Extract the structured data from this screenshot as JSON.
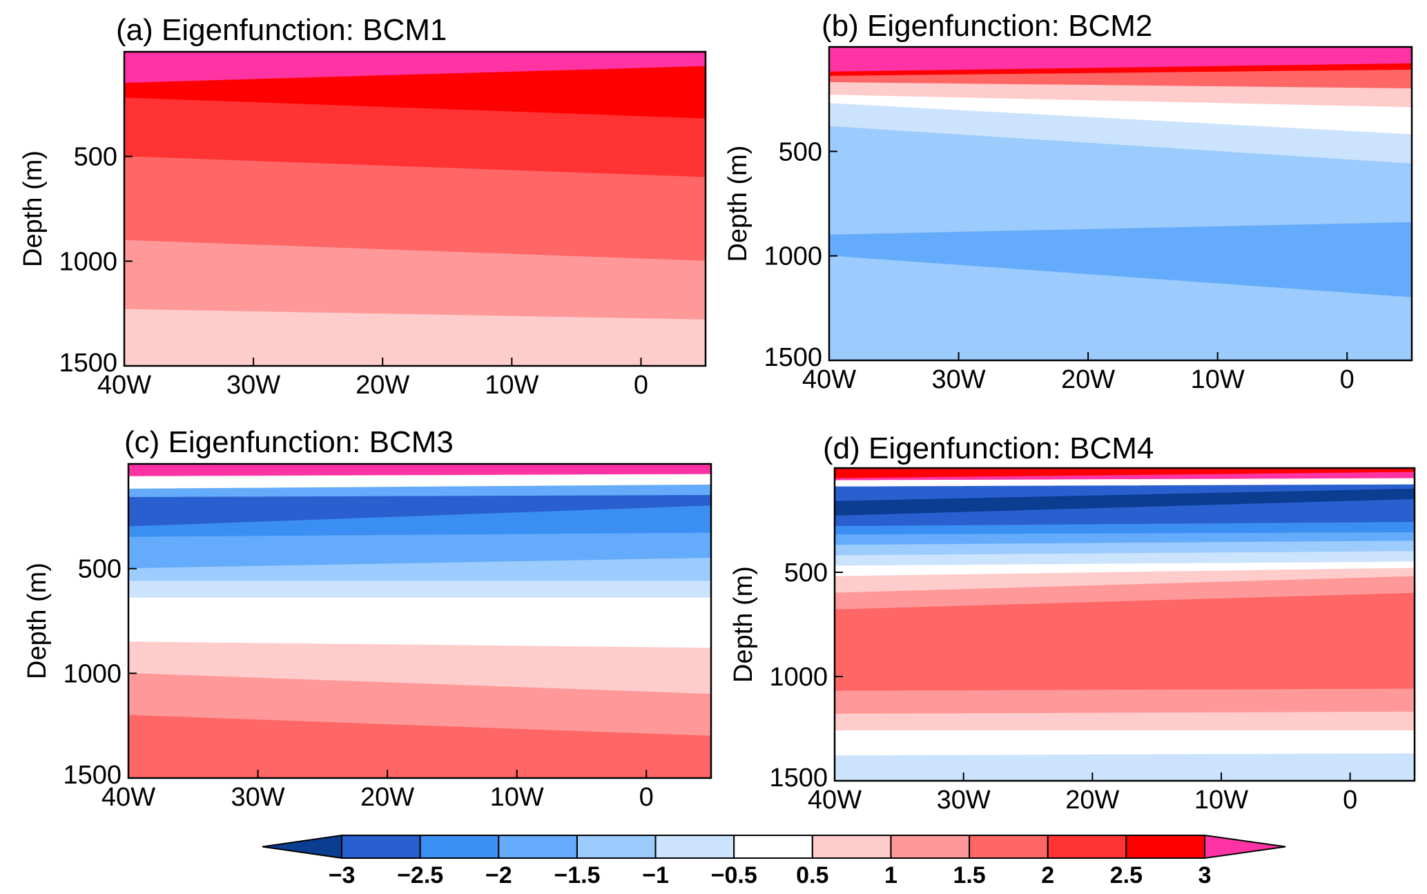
{
  "chart_data": {
    "type": "heatmap",
    "colorbar": {
      "tick_labels": [
        "−3",
        "−2.5",
        "−2",
        "−1.5",
        "−1",
        "−0.5",
        "0.5",
        "1",
        "1.5",
        "2",
        "2.5",
        "3"
      ],
      "colors": [
        "#0b3d91",
        "#2a5fd0",
        "#3b8ff2",
        "#64acfb",
        "#9ccbfd",
        "#cce3fd",
        "#ffffff",
        "#ffcccc",
        "#ff9999",
        "#ff6666",
        "#ff3333",
        "#ff0000",
        "#ff33a3"
      ]
    },
    "panels": [
      {
        "title": "(a) Eigenfunction: BCM1",
        "ylabel": "Depth (m)",
        "y_ticks": [
          "500",
          "1000",
          "1500"
        ],
        "y_tick_values": [
          500,
          1000,
          1500
        ],
        "x_ticks": [
          "40W",
          "30W",
          "20W",
          "10W",
          "0"
        ],
        "x_tick_values": [
          -40,
          -30,
          -20,
          -10,
          0
        ],
        "xlim": [
          -40,
          5
        ],
        "ylim": [
          0,
          1500
        ],
        "bands": [
          {
            "color": "#ff33a3",
            "depth_bottom_left": 150,
            "depth_bottom_right": 70
          },
          {
            "color": "#ff0000",
            "depth_bottom_left": 220,
            "depth_bottom_right": 320
          },
          {
            "color": "#ff3333",
            "depth_bottom_left": 500,
            "depth_bottom_right": 600
          },
          {
            "color": "#ff6666",
            "depth_bottom_left": 900,
            "depth_bottom_right": 1000
          },
          {
            "color": "#ff9999",
            "depth_bottom_left": 1230,
            "depth_bottom_right": 1280
          },
          {
            "color": "#ffcccc",
            "depth_bottom_left": 1500,
            "depth_bottom_right": 1500
          }
        ]
      },
      {
        "title": "(b) Eigenfunction: BCM2",
        "ylabel": "Depth (m)",
        "y_ticks": [
          "500",
          "1000",
          "1500"
        ],
        "y_tick_values": [
          500,
          1000,
          1500
        ],
        "x_ticks": [
          "40W",
          "30W",
          "20W",
          "10W",
          "0"
        ],
        "x_tick_values": [
          -40,
          -30,
          -20,
          -10,
          0
        ],
        "xlim": [
          -40,
          5
        ],
        "ylim": [
          0,
          1500
        ],
        "bands": [
          {
            "color": "#ff33a3",
            "depth_bottom_left": 120,
            "depth_bottom_right": 80
          },
          {
            "color": "#ff0000",
            "depth_bottom_left": 140,
            "depth_bottom_right": 110
          },
          {
            "color": "#ff6666",
            "depth_bottom_left": 170,
            "depth_bottom_right": 200
          },
          {
            "color": "#ffcccc",
            "depth_bottom_left": 230,
            "depth_bottom_right": 290
          },
          {
            "color": "#ffffff",
            "depth_bottom_left": 270,
            "depth_bottom_right": 420
          },
          {
            "color": "#cce3fd",
            "depth_bottom_left": 380,
            "depth_bottom_right": 560
          },
          {
            "color": "#9ccbfd",
            "depth_bottom_left": 900,
            "depth_bottom_right": 840
          },
          {
            "color": "#64acfb",
            "depth_bottom_left": 1000,
            "depth_bottom_right": 1200
          },
          {
            "color": "#9ccbfd",
            "depth_bottom_left": 1500,
            "depth_bottom_right": 1500
          }
        ]
      },
      {
        "title": "(c) Eigenfunction: BCM3",
        "ylabel": "Depth (m)",
        "y_ticks": [
          "500",
          "1000",
          "1500"
        ],
        "y_tick_values": [
          500,
          1000,
          1500
        ],
        "x_ticks": [
          "40W",
          "30W",
          "20W",
          "10W",
          "0"
        ],
        "x_tick_values": [
          -40,
          -30,
          -20,
          -10,
          0
        ],
        "xlim": [
          -40,
          5
        ],
        "ylim": [
          0,
          1500
        ],
        "bands": [
          {
            "color": "#ff33a3",
            "depth_bottom_left": 60,
            "depth_bottom_right": 50
          },
          {
            "color": "#ffffff",
            "depth_bottom_left": 120,
            "depth_bottom_right": 100
          },
          {
            "color": "#64acfb",
            "depth_bottom_left": 160,
            "depth_bottom_right": 150
          },
          {
            "color": "#2a5fd0",
            "depth_bottom_left": 300,
            "depth_bottom_right": 200
          },
          {
            "color": "#3b8ff2",
            "depth_bottom_left": 350,
            "depth_bottom_right": 330
          },
          {
            "color": "#64acfb",
            "depth_bottom_left": 500,
            "depth_bottom_right": 450
          },
          {
            "color": "#9ccbfd",
            "depth_bottom_left": 560,
            "depth_bottom_right": 560
          },
          {
            "color": "#cce3fd",
            "depth_bottom_left": 640,
            "depth_bottom_right": 640
          },
          {
            "color": "#ffffff",
            "depth_bottom_left": 850,
            "depth_bottom_right": 880
          },
          {
            "color": "#ffcccc",
            "depth_bottom_left": 1000,
            "depth_bottom_right": 1100
          },
          {
            "color": "#ff9999",
            "depth_bottom_left": 1200,
            "depth_bottom_right": 1300
          },
          {
            "color": "#ff6666",
            "depth_bottom_left": 1500,
            "depth_bottom_right": 1500
          }
        ]
      },
      {
        "title": "(d) Eigenfunction: BCM4",
        "ylabel": "Depth (m)",
        "y_ticks": [
          "500",
          "1000",
          "1500"
        ],
        "y_tick_values": [
          500,
          1000,
          1500
        ],
        "x_ticks": [
          "40W",
          "30W",
          "20W",
          "10W",
          "0"
        ],
        "x_tick_values": [
          -40,
          -30,
          -20,
          -10,
          0
        ],
        "xlim": [
          -40,
          5
        ],
        "ylim": [
          0,
          1500
        ],
        "bands": [
          {
            "color": "#ff0000",
            "depth_bottom_left": 50,
            "depth_bottom_right": 20
          },
          {
            "color": "#ff33a3",
            "depth_bottom_left": 60,
            "depth_bottom_right": 50
          },
          {
            "color": "#ffffff",
            "depth_bottom_left": 90,
            "depth_bottom_right": 80
          },
          {
            "color": "#2a5fd0",
            "depth_bottom_left": 160,
            "depth_bottom_right": 100
          },
          {
            "color": "#0b3d91",
            "depth_bottom_left": 230,
            "depth_bottom_right": 150
          },
          {
            "color": "#2a5fd0",
            "depth_bottom_left": 280,
            "depth_bottom_right": 260
          },
          {
            "color": "#3b8ff2",
            "depth_bottom_left": 320,
            "depth_bottom_right": 310
          },
          {
            "color": "#64acfb",
            "depth_bottom_left": 370,
            "depth_bottom_right": 350
          },
          {
            "color": "#9ccbfd",
            "depth_bottom_left": 420,
            "depth_bottom_right": 400
          },
          {
            "color": "#cce3fd",
            "depth_bottom_left": 470,
            "depth_bottom_right": 450
          },
          {
            "color": "#ffffff",
            "depth_bottom_left": 520,
            "depth_bottom_right": 480
          },
          {
            "color": "#ffcccc",
            "depth_bottom_left": 600,
            "depth_bottom_right": 520
          },
          {
            "color": "#ff9999",
            "depth_bottom_left": 680,
            "depth_bottom_right": 600
          },
          {
            "color": "#ff6666",
            "depth_bottom_left": 1070,
            "depth_bottom_right": 1060
          },
          {
            "color": "#ff9999",
            "depth_bottom_left": 1180,
            "depth_bottom_right": 1170
          },
          {
            "color": "#ffcccc",
            "depth_bottom_left": 1260,
            "depth_bottom_right": 1260
          },
          {
            "color": "#ffffff",
            "depth_bottom_left": 1380,
            "depth_bottom_right": 1370
          },
          {
            "color": "#cce3fd",
            "depth_bottom_left": 1500,
            "depth_bottom_right": 1500
          }
        ]
      }
    ]
  }
}
